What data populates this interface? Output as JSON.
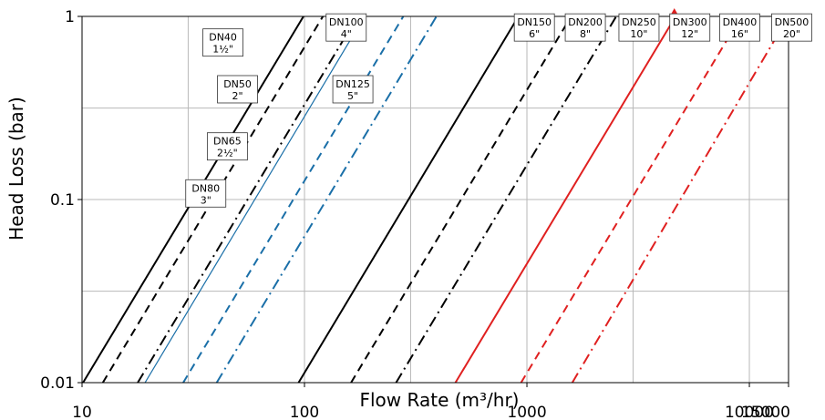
{
  "chart_data": {
    "type": "line",
    "title": "",
    "xlabel": "Flow Rate (m³/hr)",
    "ylabel": "Head Loss (bar)",
    "x_scale": "log",
    "y_scale": "log",
    "xlim": [
      10,
      15000
    ],
    "ylim": [
      0.01,
      1
    ],
    "grid": true,
    "x_ticks": [
      {
        "value": 10,
        "label": "10"
      },
      {
        "value": 100,
        "label": "100"
      },
      {
        "value": 1000,
        "label": "1000"
      },
      {
        "value": 10000,
        "label": "10000"
      },
      {
        "value": 15000,
        "label": "15000"
      }
    ],
    "y_ticks": [
      {
        "value": 0.01,
        "label": "0.01"
      },
      {
        "value": 0.1,
        "label": "0.1"
      },
      {
        "value": 1,
        "label": "1"
      }
    ],
    "x_grid": [
      30,
      100,
      300,
      1000,
      3000,
      10000
    ],
    "y_grid": [
      0.0316,
      0.1,
      0.316
    ],
    "series": [
      {
        "name": "DN40 1½\"",
        "color": "#000000",
        "dash": "solid",
        "x": [
          10.1,
          99
        ],
        "y": [
          0.01,
          1
        ]
      },
      {
        "name": "DN50 2\"",
        "color": "#000000",
        "dash": "dash",
        "x": [
          12.4,
          121
        ],
        "y": [
          0.01,
          1
        ]
      },
      {
        "name": "DN65 2½\"",
        "color": "#000000",
        "dash": "dashdot",
        "x": [
          17.8,
          173
        ],
        "y": [
          0.01,
          1
        ]
      },
      {
        "name": "DN80 3\"",
        "color": "#1a6fa8",
        "dash": "thin",
        "x": [
          19.2,
          186
        ],
        "y": [
          0.01,
          1
        ]
      },
      {
        "name": "DN100 4\"",
        "color": "#1a6fa8",
        "dash": "dash",
        "x": [
          28.5,
          278
        ],
        "y": [
          0.01,
          1
        ]
      },
      {
        "name": "DN125 5\"",
        "color": "#1a6fa8",
        "dash": "dashdot",
        "x": [
          40.3,
          392
        ],
        "y": [
          0.01,
          1
        ]
      },
      {
        "name": "DN150 6\"",
        "color": "#000000",
        "dash": "solid",
        "x": [
          94,
          916
        ],
        "y": [
          0.01,
          1
        ]
      },
      {
        "name": "DN200 8\"",
        "color": "#000000",
        "dash": "dash",
        "x": [
          162,
          1580
        ],
        "y": [
          0.01,
          1
        ]
      },
      {
        "name": "DN250 10\"",
        "color": "#000000",
        "dash": "dashdot",
        "x": [
          258,
          2520
        ],
        "y": [
          0.01,
          1
        ]
      },
      {
        "name": "DN300 12\"",
        "color": "#e02020",
        "dash": "solid",
        "x": [
          477,
          4660
        ],
        "y": [
          0.01,
          1
        ]
      },
      {
        "name": "DN400 16\"",
        "color": "#e02020",
        "dash": "dash",
        "x": [
          941,
          9180
        ],
        "y": [
          0.01,
          1
        ]
      },
      {
        "name": "DN500 20\"",
        "color": "#e02020",
        "dash": "dashdot",
        "x": [
          1600,
          15000
        ],
        "y": [
          0.01,
          1
        ]
      }
    ],
    "labels": [
      {
        "line1": "DN40",
        "line2": "1½\"",
        "x": 43,
        "y": 0.72
      },
      {
        "line1": "DN50",
        "line2": "2\"",
        "x": 50,
        "y": 0.4
      },
      {
        "line1": "DN65",
        "line2": "2½\"",
        "x": 45,
        "y": 0.195
      },
      {
        "line1": "DN80",
        "line2": "3\"",
        "x": 36,
        "y": 0.108
      },
      {
        "line1": "DN100",
        "line2": "4\"",
        "x": 154,
        "y": 0.87
      },
      {
        "line1": "DN125",
        "line2": "5\"",
        "x": 165,
        "y": 0.4
      },
      {
        "line1": "DN150",
        "line2": "6\"",
        "x": 1080,
        "y": 0.87
      },
      {
        "line1": "DN200",
        "line2": "8\"",
        "x": 1830,
        "y": 0.87
      },
      {
        "line1": "DN250",
        "line2": "10\"",
        "x": 3190,
        "y": 0.87
      },
      {
        "line1": "DN300",
        "line2": "12\"",
        "x": 5400,
        "y": 0.87
      },
      {
        "line1": "DN400",
        "line2": "16\"",
        "x": 9050,
        "y": 0.87
      },
      {
        "line1": "DN500",
        "line2": "20\"",
        "x": 15500,
        "y": 0.87
      }
    ],
    "marker": {
      "x": 4600,
      "y": 1,
      "color": "#e02020",
      "shape": "triangle"
    }
  }
}
